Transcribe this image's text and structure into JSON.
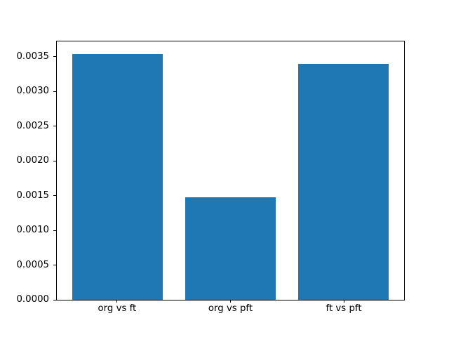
{
  "chart_data": {
    "type": "bar",
    "title": "",
    "xlabel": "",
    "ylabel": "",
    "categories": [
      "org vs ft",
      "org vs pft",
      "ft vs pft"
    ],
    "values": [
      0.00355,
      0.00148,
      0.0034
    ],
    "bar_color": "#1f77b4",
    "bar_width_fraction": 0.8,
    "xlim": [
      -0.538,
      2.538
    ],
    "ylim": [
      0,
      0.0037275
    ],
    "ytick_labels": [
      "0.0000",
      "0.0005",
      "0.0010",
      "0.0015",
      "0.0020",
      "0.0025",
      "0.0030",
      "0.0035"
    ],
    "grid": false,
    "legend_position": "none",
    "axis_color": "#000000",
    "text_color": "#000000"
  }
}
